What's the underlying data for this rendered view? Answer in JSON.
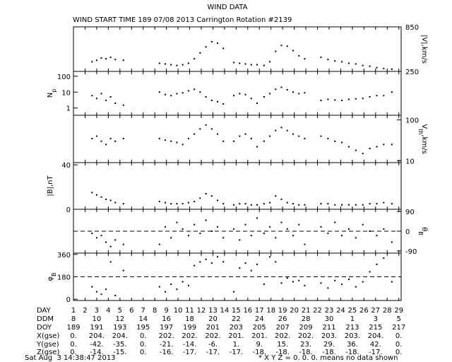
{
  "title": "WIND DATA",
  "subtitle": "WIND START TIME 189 07/08 2013 Carrington Rotation #2139",
  "chart_data": [
    {
      "type": "scatter",
      "ylabel": [
        "|V|,km/s"
      ],
      "axis_side": "right",
      "xlim": [
        1,
        29.2
      ],
      "ylim": [
        250,
        850
      ],
      "yticks": [
        250,
        850
      ],
      "color": "#000000",
      "x": [
        2.6,
        3.0,
        3.4,
        3.8,
        4.2,
        4.6,
        5.3,
        8.4,
        8.9,
        9.4,
        9.9,
        10.4,
        10.9,
        11.4,
        11.9,
        12.4,
        12.9,
        13.4,
        13.9,
        14.8,
        15.3,
        15.8,
        16.3,
        16.8,
        17.4,
        17.9,
        18.4,
        18.9,
        19.4,
        19.9,
        20.4,
        20.9,
        22.3,
        22.9,
        23.5,
        24.1,
        24.7,
        25.3,
        25.9,
        26.5,
        27.1,
        27.7,
        28.4
      ],
      "values": [
        380,
        400,
        430,
        420,
        440,
        410,
        400,
        360,
        350,
        340,
        330,
        340,
        360,
        420,
        500,
        580,
        650,
        630,
        560,
        370,
        360,
        350,
        340,
        340,
        330,
        380,
        520,
        600,
        590,
        530,
        460,
        420,
        440,
        410,
        390,
        380,
        360,
        350,
        330,
        320,
        300,
        290,
        280
      ]
    },
    {
      "type": "scatter",
      "ylabel": [
        "N",
        "p"
      ],
      "axis_side": "left",
      "log": true,
      "xlim": [
        1,
        29.2
      ],
      "ylim": [
        0.35,
        200
      ],
      "yticks": [
        1,
        10,
        100
      ],
      "color": "#000000",
      "x": [
        2.6,
        3.0,
        3.4,
        3.8,
        4.2,
        4.6,
        5.3,
        8.4,
        8.9,
        9.4,
        9.9,
        10.4,
        10.9,
        11.4,
        11.9,
        12.4,
        12.9,
        13.4,
        13.9,
        14.8,
        15.3,
        15.8,
        16.3,
        16.8,
        17.4,
        17.9,
        18.4,
        18.9,
        19.4,
        19.9,
        20.4,
        20.9,
        22.3,
        22.9,
        23.5,
        24.1,
        24.7,
        25.3,
        25.9,
        26.5,
        27.1,
        27.7,
        28.4
      ],
      "values": [
        6,
        4,
        8,
        3,
        5,
        2,
        1.5,
        10,
        7,
        6,
        8,
        9,
        12,
        15,
        10,
        5,
        3,
        2.5,
        1.8,
        6,
        8,
        7,
        4,
        2,
        5,
        8,
        15,
        20,
        14,
        10,
        8,
        9,
        3,
        3.5,
        3.2,
        3,
        3.5,
        3.8,
        4,
        5,
        6,
        6,
        10
      ]
    },
    {
      "type": "scatter",
      "ylabel": [
        "V",
        "th",
        ",km/s"
      ],
      "axis_side": "right",
      "log": true,
      "xlim": [
        1,
        29.2
      ],
      "ylim": [
        9,
        130
      ],
      "yticks": [
        10,
        100
      ],
      "color": "#000000",
      "x": [
        2.6,
        3.0,
        3.4,
        3.8,
        4.2,
        4.6,
        5.3,
        8.4,
        8.9,
        9.4,
        9.9,
        10.4,
        10.9,
        11.4,
        11.9,
        12.4,
        12.9,
        13.4,
        13.9,
        14.8,
        15.3,
        15.8,
        16.3,
        16.8,
        17.4,
        17.9,
        18.4,
        18.9,
        19.4,
        19.9,
        20.4,
        20.9,
        22.3,
        22.9,
        23.5,
        24.1,
        24.7,
        25.3,
        25.9,
        26.5,
        27.1,
        27.7,
        28.4
      ],
      "values": [
        35,
        40,
        30,
        25,
        35,
        30,
        35,
        35,
        32,
        30,
        28,
        25,
        35,
        45,
        60,
        75,
        60,
        45,
        30,
        30,
        40,
        45,
        35,
        22,
        30,
        40,
        55,
        65,
        55,
        45,
        40,
        35,
        40,
        35,
        30,
        28,
        22,
        18,
        15,
        20,
        22,
        25,
        25
      ]
    },
    {
      "type": "scatter",
      "ylabel": [
        "|B|,nT"
      ],
      "axis_side": "left",
      "xlim": [
        1,
        29.2
      ],
      "ylim": [
        0,
        42
      ],
      "yticks": [
        0,
        40
      ],
      "color": "#000000",
      "x": [
        2.6,
        3.0,
        3.4,
        3.8,
        4.2,
        4.6,
        5.3,
        8.4,
        8.9,
        9.4,
        9.9,
        10.4,
        10.9,
        11.4,
        11.9,
        12.4,
        12.9,
        13.4,
        13.9,
        14.8,
        15.3,
        15.8,
        16.3,
        16.8,
        17.4,
        17.9,
        18.4,
        18.9,
        19.4,
        19.9,
        20.4,
        20.9,
        22.3,
        22.9,
        23.5,
        24.1,
        24.7,
        25.3,
        25.9,
        26.5,
        27.1,
        27.7,
        28.4
      ],
      "values": [
        15,
        13,
        11,
        9,
        8,
        6,
        5,
        7,
        6,
        5,
        5,
        5,
        6,
        7,
        10,
        14,
        12,
        8,
        5,
        4,
        5,
        5,
        4,
        4,
        5,
        6,
        12,
        9,
        6,
        5,
        4,
        4,
        5,
        5,
        4,
        4,
        4,
        4,
        4,
        5,
        5,
        6,
        5
      ]
    },
    {
      "type": "scatter",
      "ylabel": [
        "θ",
        "B"
      ],
      "axis_side": "right",
      "dashed": 0,
      "xlim": [
        1,
        29.2
      ],
      "ylim": [
        -100,
        100
      ],
      "yticks": [
        -90,
        0,
        90
      ],
      "color": "#000000",
      "x": [
        2.6,
        3.0,
        3.4,
        3.8,
        4.2,
        4.6,
        5.3,
        8.4,
        8.9,
        9.4,
        9.9,
        10.4,
        10.9,
        11.4,
        11.9,
        12.4,
        12.9,
        13.4,
        13.9,
        14.8,
        15.3,
        15.8,
        16.3,
        16.8,
        17.4,
        17.9,
        18.4,
        18.9,
        19.4,
        19.9,
        20.4,
        20.9,
        22.3,
        22.9,
        23.5,
        24.1,
        24.7,
        25.3,
        25.9,
        26.5,
        27.1,
        27.7,
        28.4
      ],
      "values": [
        -10,
        -30,
        -20,
        -50,
        -70,
        -40,
        -60,
        -60,
        20,
        -30,
        40,
        10,
        -20,
        30,
        -10,
        50,
        0,
        20,
        -30,
        10,
        -40,
        30,
        -20,
        60,
        -10,
        20,
        -30,
        40,
        10,
        -20,
        30,
        -60,
        20,
        -10,
        40,
        -20,
        10,
        -30,
        30,
        0,
        -20,
        10,
        -50
      ]
    },
    {
      "type": "scatter",
      "ylabel": [
        "φ",
        "B"
      ],
      "axis_side": "left",
      "dashed": 180,
      "xlim": [
        1,
        29.2
      ],
      "ylim": [
        -10,
        370
      ],
      "yticks": [
        0,
        180,
        360
      ],
      "color": "#000000",
      "x": [
        2.6,
        3.0,
        3.4,
        3.8,
        4.2,
        4.6,
        5.3,
        8.4,
        8.9,
        9.4,
        9.9,
        10.4,
        10.9,
        11.4,
        11.9,
        12.4,
        12.9,
        13.4,
        13.9,
        14.8,
        15.3,
        15.8,
        16.3,
        16.8,
        17.4,
        17.9,
        18.4,
        18.9,
        19.4,
        19.9,
        20.4,
        20.9,
        22.3,
        22.9,
        23.5,
        24.1,
        24.7,
        25.3,
        25.9,
        26.5,
        27.1,
        27.7,
        28.4
      ],
      "values": [
        100,
        60,
        40,
        80,
        300,
        30,
        230,
        100,
        60,
        120,
        80,
        140,
        110,
        270,
        300,
        320,
        290,
        340,
        300,
        60,
        250,
        290,
        230,
        280,
        120,
        340,
        300,
        130,
        170,
        140,
        150,
        110,
        130,
        90,
        150,
        120,
        160,
        100,
        140,
        220,
        280,
        330,
        140
      ]
    }
  ],
  "table": {
    "rows": [
      {
        "label": "DAY",
        "values": [
          1,
          2,
          3,
          4,
          5,
          6,
          7,
          8,
          9,
          10,
          11,
          12,
          13,
          14,
          15,
          16,
          17,
          18,
          19,
          20,
          21,
          22,
          23,
          24,
          25,
          26,
          27,
          28,
          29
        ]
      },
      {
        "label": "DDM",
        "values": [
          8,
          10,
          12,
          14,
          16,
          18,
          20,
          22,
          24,
          26,
          28,
          30,
          1,
          3,
          5
        ]
      },
      {
        "label": "DOY",
        "values": [
          189,
          191,
          193,
          195,
          197,
          199,
          201,
          203,
          205,
          207,
          209,
          211,
          213,
          215,
          217
        ]
      },
      {
        "label": "X(gse)",
        "values": [
          "0.",
          "204.",
          "204.",
          "0.",
          "202.",
          "202.",
          "202.",
          "201.",
          "201.",
          "202.",
          "202.",
          "203.",
          "203.",
          "204.",
          "0."
        ]
      },
      {
        "label": "Y(gse)",
        "values": [
          "0.",
          "-42.",
          "-35.",
          "0.",
          "-21.",
          "-14.",
          "-6.",
          "1.",
          "9.",
          "15.",
          "23.",
          "29.",
          "36.",
          "42.",
          "0."
        ]
      },
      {
        "label": "Z(gse)",
        "values": [
          "0.",
          "-14.",
          "-15.",
          "0.",
          "-16.",
          "-17.",
          "-17.",
          "-17.",
          "-18.",
          "-18.",
          "-18.",
          "-18.",
          "-18.",
          "-17.",
          "0."
        ]
      }
    ]
  },
  "footer": {
    "date": "Sat Aug  3 14:38:47 2013",
    "note": "* X Y Z = 0. 0. 0. means no data shown"
  }
}
